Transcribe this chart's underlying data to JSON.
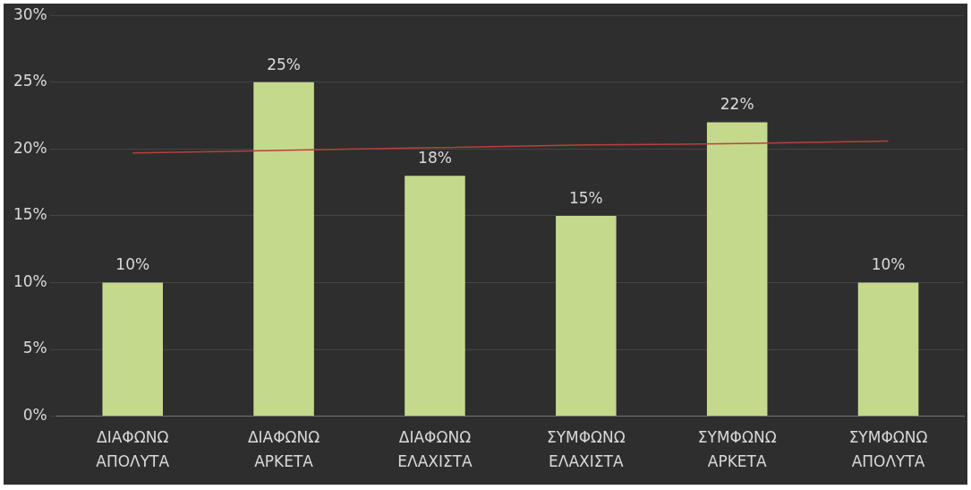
{
  "chart_data": {
    "type": "bar",
    "categories": [
      "ΔΙΑΦΩΝΩ ΑΠΟΛΥΤΑ",
      "ΔΙΑΦΩΝΩ ΑΡΚΕΤΑ",
      "ΔΙΑΦΩΝΩ ΕΛΑΧΙΣΤΑ",
      "ΣΥΜΦΩΝΩ ΕΛΑΧΙΣΤΑ",
      "ΣΥΜΦΩΝΩ ΑΡΚΕΤΑ",
      "ΣΥΜΦΩΝΩ ΑΠΟΛΥΤΑ"
    ],
    "series": [
      {
        "color": "#c5d98c",
        "values": [
          10,
          25,
          18,
          15,
          22,
          10
        ],
        "value_labels": [
          "10%",
          "25%",
          "18%",
          "15%",
          "22%",
          "10%"
        ]
      },
      {
        "type": "line",
        "color": "#b8413a",
        "values": [
          19.7,
          19.9,
          20.1,
          20.3,
          20.4,
          20.6
        ]
      }
    ],
    "ylim": [
      0,
      30
    ],
    "yticks": [
      {
        "value": 0,
        "label": "0%"
      },
      {
        "value": 5,
        "label": "5%"
      },
      {
        "value": 10,
        "label": "10%"
      },
      {
        "value": 15,
        "label": "15%"
      },
      {
        "value": 20,
        "label": "20%"
      },
      {
        "value": 25,
        "label": "25%"
      },
      {
        "value": 30,
        "label": "30%"
      }
    ],
    "grid": "y",
    "legend": false,
    "marker": "none"
  }
}
